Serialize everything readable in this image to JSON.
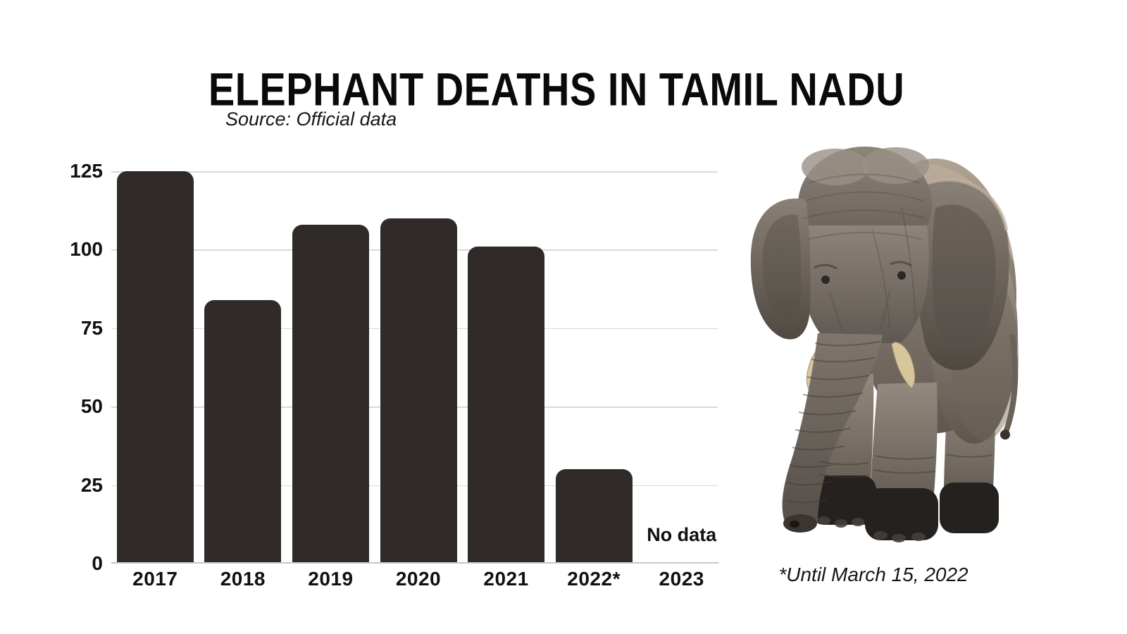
{
  "title": "ELEPHANT DEATHS IN TAMIL NADU",
  "source_note": "Source: Official data",
  "footnote": "*Until March 15, 2022",
  "labels": {
    "no_data": "No data"
  },
  "colors": {
    "bar": "#302b28",
    "gridline": "#d9d9d9",
    "axis_line": "#c6c6c6",
    "text": "#0d0d0d",
    "background": "#ffffff",
    "tusk": "#d7c59c"
  },
  "chart_data": {
    "type": "bar",
    "title": "ELEPHANT DEATHS IN TAMIL NADU",
    "categories": [
      "2017",
      "2018",
      "2019",
      "2020",
      "2021",
      "2022*",
      "2023"
    ],
    "values": [
      125,
      84,
      108,
      110,
      101,
      30,
      null
    ],
    "no_data_text": "No data",
    "xlabel": "",
    "ylabel": "",
    "ylim": [
      0,
      125
    ],
    "yticks": [
      0,
      25,
      50,
      75,
      100,
      125
    ],
    "grid": true,
    "legend": false
  },
  "image": {
    "description": "Asian elephant walking, cut-out photo"
  }
}
